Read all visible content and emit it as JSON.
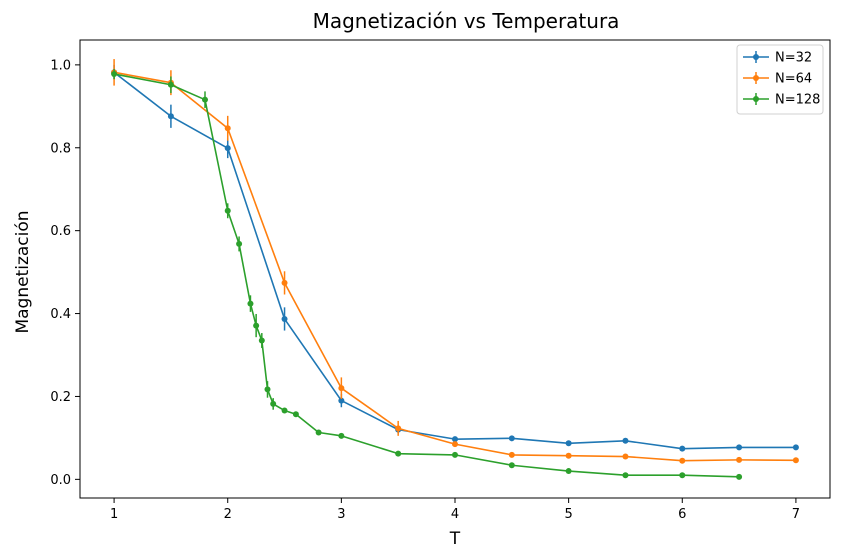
{
  "chart_data": {
    "type": "line",
    "title": "Magnetización vs Temperatura",
    "xlabel": "T",
    "ylabel": "Magnetización",
    "xlim": [
      0.7,
      7.3
    ],
    "ylim": [
      -0.045,
      1.06
    ],
    "xticks": [
      1,
      2,
      3,
      4,
      5,
      6,
      7
    ],
    "yticks": [
      0.0,
      0.2,
      0.4,
      0.6,
      0.8,
      1.0
    ],
    "xtick_labels": [
      "1",
      "2",
      "3",
      "4",
      "5",
      "6",
      "7"
    ],
    "ytick_labels": [
      "0.0",
      "0.2",
      "0.4",
      "0.6",
      "0.8",
      "1.0"
    ],
    "grid": false,
    "legend_position": "top-right",
    "series": [
      {
        "name": "N=32",
        "color": "#1f77b4",
        "x": [
          1,
          1.5,
          2,
          2.5,
          3,
          3.5,
          4,
          4.5,
          5,
          5.5,
          6,
          6.5,
          7
        ],
        "y": [
          0.982,
          0.876,
          0.799,
          0.387,
          0.19,
          0.12,
          0.097,
          0.099,
          0.087,
          0.093,
          0.074,
          0.077,
          0.077
        ],
        "err": [
          0.018,
          0.028,
          0.024,
          0.028,
          0.016,
          0.009,
          0.005,
          0.004,
          0.003,
          0.004,
          0.003,
          0.003,
          0.003
        ]
      },
      {
        "name": "N=64",
        "color": "#ff7f0e",
        "x": [
          1,
          1.5,
          2,
          2.5,
          3,
          3.5,
          4,
          4.5,
          5,
          5.5,
          6,
          6.5,
          7
        ],
        "y": [
          0.982,
          0.957,
          0.847,
          0.474,
          0.22,
          0.123,
          0.085,
          0.059,
          0.057,
          0.055,
          0.045,
          0.047,
          0.046
        ],
        "err": [
          0.032,
          0.03,
          0.03,
          0.028,
          0.026,
          0.018,
          0.004,
          0.003,
          0.003,
          0.003,
          0.002,
          0.002,
          0.002
        ]
      },
      {
        "name": "N=128",
        "color": "#2ca02c",
        "x": [
          1,
          1.5,
          1.8,
          2.0,
          2.1,
          2.2,
          2.25,
          2.3,
          2.35,
          2.4,
          2.5,
          2.6,
          2.8,
          3.0,
          3.5,
          4.0,
          4.5,
          5.0,
          5.5,
          6.0,
          6.5
        ],
        "y": [
          0.978,
          0.952,
          0.916,
          0.648,
          0.568,
          0.424,
          0.371,
          0.335,
          0.217,
          0.182,
          0.166,
          0.157,
          0.113,
          0.105,
          0.062,
          0.059,
          0.034,
          0.02,
          0.01,
          0.01,
          0.006
        ],
        "err": [
          0.012,
          0.02,
          0.02,
          0.018,
          0.018,
          0.02,
          0.028,
          0.018,
          0.02,
          0.014,
          0.006,
          0.006,
          0.004,
          0.004,
          0.003,
          0.003,
          0.002,
          0.002,
          0.001,
          0.001,
          0.001
        ]
      }
    ]
  }
}
